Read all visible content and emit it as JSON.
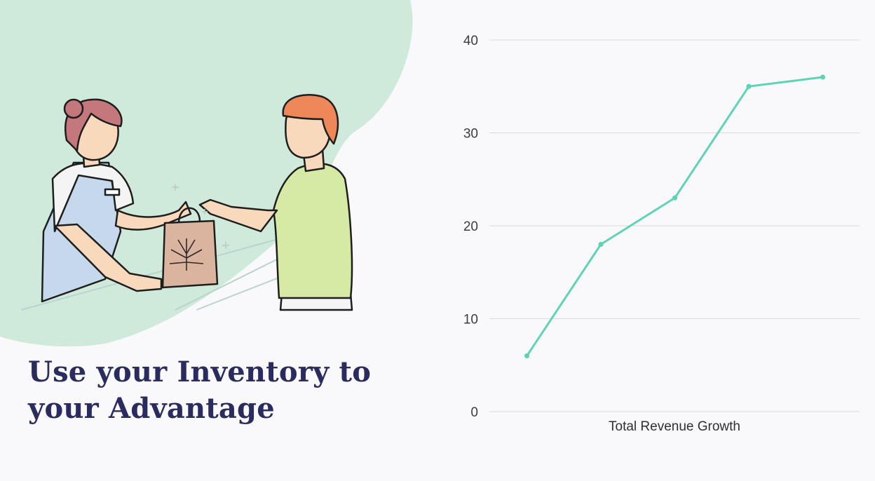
{
  "headline": {
    "line1": "Use your Inventory to",
    "line2": "your Advantage"
  },
  "illustration": {
    "icon": "cannabis-leaf-icon",
    "description_name": "budtender-handing-bag-to-customer"
  },
  "colors": {
    "backdrop": "#cfeadb",
    "line": "#5fd3b6",
    "headline": "#2a2b5e",
    "grid": "#dadada"
  },
  "chart_data": {
    "type": "line",
    "title": "",
    "xlabel": "Total Revenue Growth",
    "ylabel": "",
    "ylim": [
      0,
      40
    ],
    "yticks": [
      0,
      10,
      20,
      30,
      40
    ],
    "grid": true,
    "series": [
      {
        "name": "Total Revenue Growth",
        "values": [
          6,
          18,
          23,
          35,
          36
        ]
      }
    ]
  }
}
